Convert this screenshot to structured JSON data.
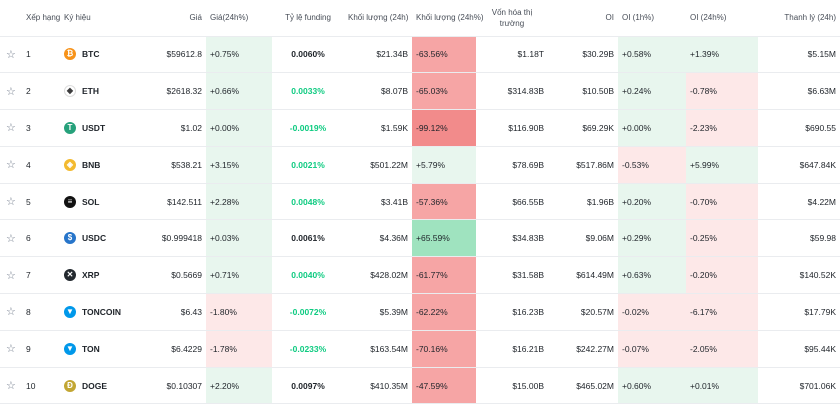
{
  "header": {
    "rank": "Xếp hạng",
    "symbol": "Ký hiệu",
    "price": "Giá",
    "price_change": "Giá(24h%)",
    "funding": "Tỷ lệ funding",
    "volume": "Khối lượng (24h)",
    "volume_change": "Khối lượng (24h%)",
    "market_cap_line1": "Vốn hóa thị",
    "market_cap_line2": "trường",
    "oi": "OI",
    "oi_1h": "OI (1h%)",
    "oi_24h": "OI (24h%)",
    "liquidation": "Thanh lý (24h)"
  },
  "colors": {
    "green_bg": "#e8f6ee",
    "red_bg": "#fde8e8",
    "strong_red_bg": "#f28b8b",
    "mid_red_bg": "#f6a5a5",
    "strong_green_bg": "#9fe3bf",
    "funding_green": "#0ecb81"
  },
  "rows": [
    {
      "rank": "1",
      "symbol": "BTC",
      "icon": "btc-icon",
      "icon_color": "#f7931a",
      "icon_glyph": "₿",
      "price": "$59612.8",
      "price_change": "+0.75%",
      "funding": "0.0060%",
      "volume": "$21.34B",
      "volume_change": "-63.56%",
      "market_cap": "$1.18T",
      "oi": "$30.29B",
      "oi_1h": "+0.58%",
      "oi_24h": "+1.39%",
      "liquidation": "$5.15M"
    },
    {
      "rank": "2",
      "symbol": "ETH",
      "icon": "eth-icon",
      "icon_color": "#ffffff",
      "icon_glyph": "◆",
      "price": "$2618.32",
      "price_change": "+0.66%",
      "funding": "0.0033%",
      "volume": "$8.07B",
      "volume_change": "-65.03%",
      "market_cap": "$314.83B",
      "oi": "$10.50B",
      "oi_1h": "+0.24%",
      "oi_24h": "-0.78%",
      "liquidation": "$6.63M"
    },
    {
      "rank": "3",
      "symbol": "USDT",
      "icon": "usdt-icon",
      "icon_color": "#26a17b",
      "icon_glyph": "T",
      "price": "$1.02",
      "price_change": "+0.00%",
      "funding": "-0.0019%",
      "volume": "$1.59K",
      "volume_change": "-99.12%",
      "market_cap": "$116.90B",
      "oi": "$69.29K",
      "oi_1h": "+0.00%",
      "oi_24h": "-2.23%",
      "liquidation": "$690.55"
    },
    {
      "rank": "4",
      "symbol": "BNB",
      "icon": "bnb-icon",
      "icon_color": "#f3ba2f",
      "icon_glyph": "◈",
      "price": "$538.21",
      "price_change": "+3.15%",
      "funding": "0.0021%",
      "volume": "$501.22M",
      "volume_change": "+5.79%",
      "market_cap": "$78.69B",
      "oi": "$517.86M",
      "oi_1h": "-0.53%",
      "oi_24h": "+5.99%",
      "liquidation": "$647.84K"
    },
    {
      "rank": "5",
      "symbol": "SOL",
      "icon": "sol-icon",
      "icon_color": "#111111",
      "icon_glyph": "≡",
      "price": "$142.511",
      "price_change": "+2.28%",
      "funding": "0.0048%",
      "volume": "$3.41B",
      "volume_change": "-57.36%",
      "market_cap": "$66.55B",
      "oi": "$1.96B",
      "oi_1h": "+0.20%",
      "oi_24h": "-0.70%",
      "liquidation": "$4.22M"
    },
    {
      "rank": "6",
      "symbol": "USDC",
      "icon": "usdc-icon",
      "icon_color": "#2775ca",
      "icon_glyph": "$",
      "price": "$0.999418",
      "price_change": "+0.03%",
      "funding": "0.0061%",
      "volume": "$4.36M",
      "volume_change": "+65.59%",
      "market_cap": "$34.83B",
      "oi": "$9.06M",
      "oi_1h": "+0.29%",
      "oi_24h": "-0.25%",
      "liquidation": "$59.98"
    },
    {
      "rank": "7",
      "symbol": "XRP",
      "icon": "xrp-icon",
      "icon_color": "#23292f",
      "icon_glyph": "✕",
      "price": "$0.5669",
      "price_change": "+0.71%",
      "funding": "0.0040%",
      "volume": "$428.02M",
      "volume_change": "-61.77%",
      "market_cap": "$31.58B",
      "oi": "$614.49M",
      "oi_1h": "+0.63%",
      "oi_24h": "-0.20%",
      "liquidation": "$140.52K"
    },
    {
      "rank": "8",
      "symbol": "TONCOIN",
      "icon": "toncoin-icon",
      "icon_color": "#0098ea",
      "icon_glyph": "▼",
      "price": "$6.43",
      "price_change": "-1.80%",
      "funding": "-0.0072%",
      "volume": "$5.39M",
      "volume_change": "-62.22%",
      "market_cap": "$16.23B",
      "oi": "$20.57M",
      "oi_1h": "-0.02%",
      "oi_24h": "-6.17%",
      "liquidation": "$17.79K"
    },
    {
      "rank": "9",
      "symbol": "TON",
      "icon": "ton-icon",
      "icon_color": "#0098ea",
      "icon_glyph": "▼",
      "price": "$6.4229",
      "price_change": "-1.78%",
      "funding": "-0.0233%",
      "volume": "$163.54M",
      "volume_change": "-70.16%",
      "market_cap": "$16.21B",
      "oi": "$242.27M",
      "oi_1h": "-0.07%",
      "oi_24h": "-2.05%",
      "liquidation": "$95.44K"
    },
    {
      "rank": "10",
      "symbol": "DOGE",
      "icon": "doge-icon",
      "icon_color": "#c2a633",
      "icon_glyph": "Ð",
      "price": "$0.10307",
      "price_change": "+2.20%",
      "funding": "0.0097%",
      "volume": "$410.35M",
      "volume_change": "-47.59%",
      "market_cap": "$15.00B",
      "oi": "$465.02M",
      "oi_1h": "+0.60%",
      "oi_24h": "+0.01%",
      "liquidation": "$701.06K"
    }
  ]
}
